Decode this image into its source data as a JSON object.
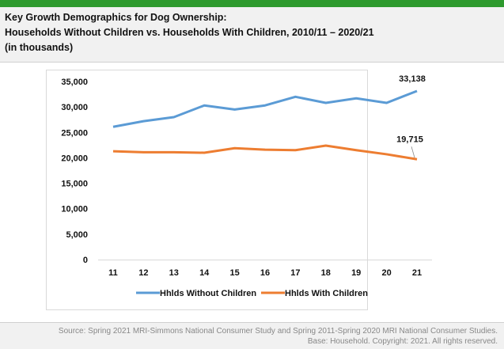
{
  "header": {
    "title": "Key Growth Demographics for Dog Ownership:",
    "subtitle": "Households Without Children vs. Households With Children, 2010/11 – 2020/21",
    "units": "(in thousands)"
  },
  "chart_data": {
    "type": "line",
    "title": "",
    "categories": [
      "11",
      "12",
      "13",
      "14",
      "15",
      "16",
      "17",
      "18",
      "19",
      "20",
      "21"
    ],
    "ylim": [
      0,
      35000
    ],
    "yticks": [
      "0",
      "5,000",
      "10,000",
      "15,000",
      "20,000",
      "25,000",
      "30,000",
      "35,000"
    ],
    "grid": false,
    "legend": "bottom",
    "series": [
      {
        "name": "Hhlds Without Children",
        "color": "#5b9bd5",
        "values": [
          26100,
          27200,
          28000,
          30300,
          29500,
          30300,
          32000,
          30800,
          31700,
          30800,
          33138
        ]
      },
      {
        "name": "Hhlds With Children",
        "color": "#ed7d31",
        "values": [
          21300,
          21100,
          21100,
          21000,
          21900,
          21600,
          21500,
          22400,
          21500,
          20700,
          19715
        ]
      }
    ],
    "data_labels": [
      "33,138",
      "19,715"
    ]
  },
  "footer": {
    "source": "Source: Spring 2021 MRI-Simmons National Consumer Study and Spring 2011-Spring 2020 MRI National Consumer Studies.",
    "base": "Base: Household. Copyright: 2021. All rights reserved."
  }
}
